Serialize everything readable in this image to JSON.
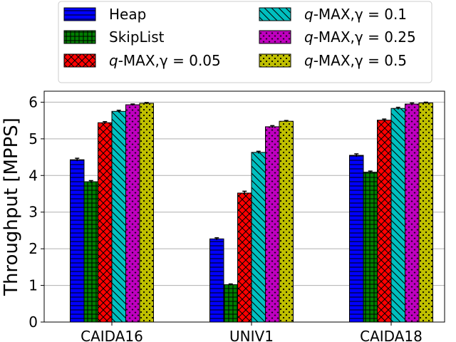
{
  "chart_data": {
    "type": "bar",
    "title": "",
    "xlabel": "",
    "ylabel": "Throughput [MPPS]",
    "ylim": [
      0,
      6.3
    ],
    "yticks": [
      0,
      1,
      2,
      3,
      4,
      5,
      6
    ],
    "categories": [
      "CAIDA16",
      "UNIV1",
      "CAIDA18"
    ],
    "grid": "horizontal",
    "legend_position": "top",
    "series": [
      {
        "name": "Heap",
        "prefix": "",
        "italic": "",
        "suffix": "Heap",
        "values": [
          4.43,
          2.27,
          4.55
        ],
        "errors": [
          0.04,
          0.03,
          0.04
        ],
        "color": "#0000ff",
        "pattern": "hlines"
      },
      {
        "name": "SkipList",
        "prefix": "",
        "italic": "",
        "suffix": "SkipList",
        "values": [
          3.83,
          1.02,
          4.09
        ],
        "errors": [
          0.03,
          0.02,
          0.03
        ],
        "color": "#008000",
        "pattern": "grid"
      },
      {
        "name": "q-MAX,γ = 0.05",
        "prefix": "",
        "italic": "q",
        "suffix": "-MAX,γ = 0.05",
        "values": [
          5.44,
          3.52,
          5.51
        ],
        "errors": [
          0.03,
          0.05,
          0.03
        ],
        "color": "#ff0000",
        "pattern": "crosshatch"
      },
      {
        "name": "q-MAX,γ = 0.1",
        "prefix": "",
        "italic": "q",
        "suffix": "-MAX,γ = 0.1",
        "values": [
          5.75,
          4.63,
          5.83
        ],
        "errors": [
          0.03,
          0.03,
          0.03
        ],
        "color": "#00bfbf",
        "pattern": "diag"
      },
      {
        "name": "q-MAX,γ = 0.25",
        "prefix": "",
        "italic": "q",
        "suffix": "-MAX,γ = 0.25",
        "values": [
          5.93,
          5.33,
          5.95
        ],
        "errors": [
          0.02,
          0.03,
          0.03
        ],
        "color": "#bf00bf",
        "pattern": "stars"
      },
      {
        "name": "q-MAX,γ = 0.5",
        "prefix": "",
        "italic": "q",
        "suffix": "-MAX,γ = 0.5",
        "values": [
          5.97,
          5.48,
          5.98
        ],
        "errors": [
          0.02,
          0.02,
          0.02
        ],
        "color": "#bfbf00",
        "pattern": "dots"
      }
    ]
  }
}
